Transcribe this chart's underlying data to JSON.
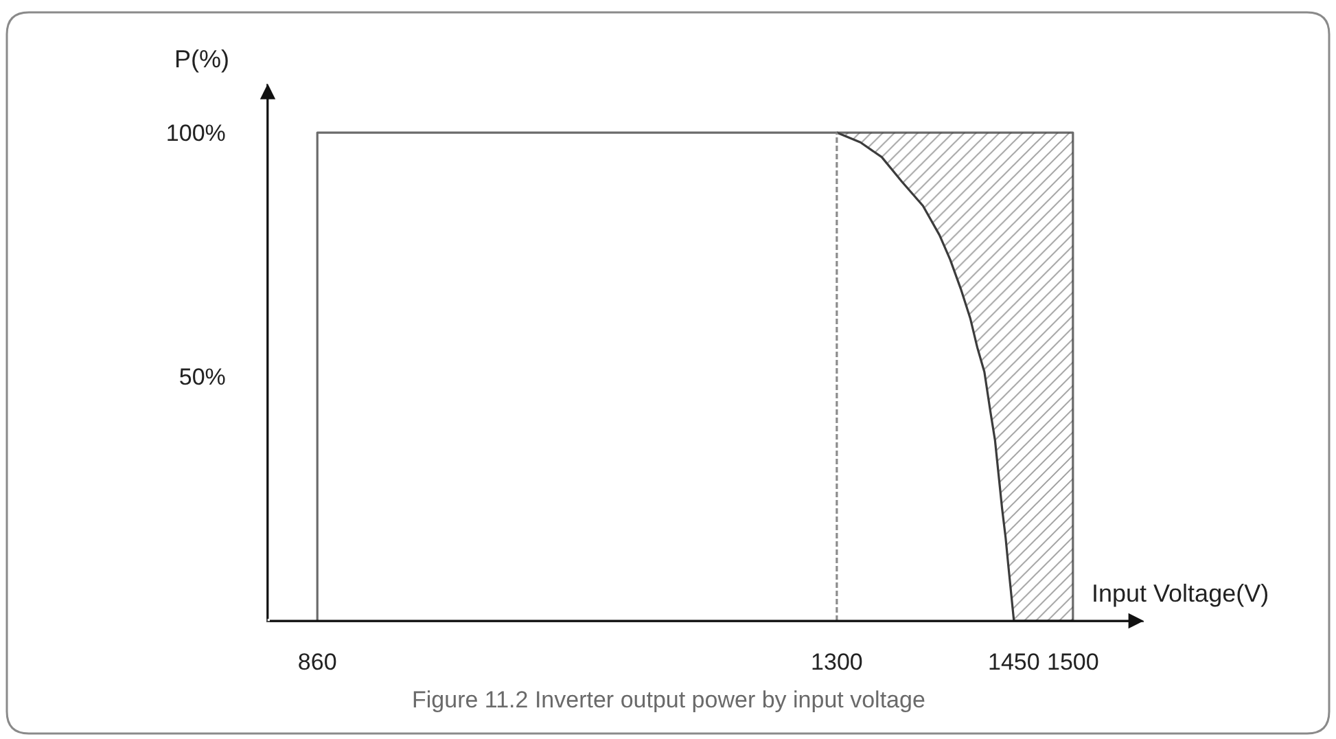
{
  "chart_data": {
    "type": "line",
    "xlabel": "Input Voltage(V)",
    "ylabel": "P(%)",
    "annotations": [
      "Figure 11.2 Inverter output power by input voltage"
    ],
    "xlim": [
      818,
      1560
    ],
    "ylim": [
      0,
      110
    ],
    "xticks": [
      860,
      1300,
      1450,
      1500
    ],
    "yticks": [
      {
        "value": 50,
        "label": "50%"
      },
      {
        "value": 100,
        "label": "100%"
      }
    ],
    "marker": "none",
    "ref_lines": [
      {
        "axis": "x",
        "value": 1300,
        "line_style": "dashed",
        "color": "#8c8c8c"
      }
    ],
    "series": [
      {
        "color": "#6b6b6b",
        "x": [
          860,
          860,
          1500,
          1500
        ],
        "values": [
          0,
          100,
          100,
          0
        ]
      },
      {
        "color": "#3c3c3c",
        "x": [
          1300,
          1320,
          1338,
          1355,
          1373,
          1387,
          1396,
          1405,
          1413,
          1419,
          1425,
          1430,
          1434,
          1437,
          1440,
          1443,
          1445,
          1450,
          1500
        ],
        "values": [
          100,
          98,
          95,
          90,
          85,
          79,
          74,
          68,
          62,
          56,
          51,
          43,
          37,
          30,
          23,
          17,
          12,
          0,
          0
        ],
        "lower": [
          100,
          98,
          95,
          90,
          85,
          79,
          74,
          68,
          62,
          56,
          51,
          43,
          37,
          30,
          23,
          17,
          12,
          0,
          0
        ],
        "upper": [
          100,
          100,
          100,
          100,
          100,
          100,
          100,
          100,
          100,
          100,
          100,
          100,
          100,
          100,
          100,
          100,
          100,
          100,
          100
        ]
      }
    ]
  }
}
